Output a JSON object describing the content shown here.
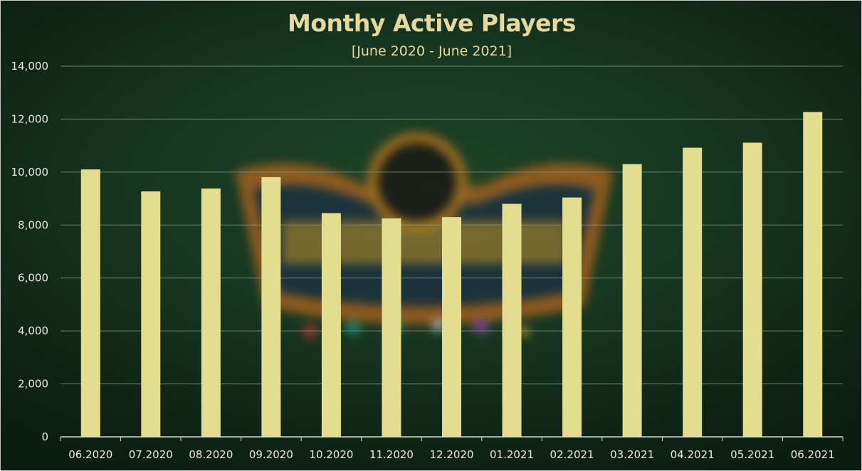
{
  "chart_data": {
    "type": "bar",
    "title": "Monthy Active Players",
    "subtitle": "[June 2020 - June 2021]",
    "xlabel": "",
    "ylabel": "",
    "categories": [
      "06.2020",
      "07.2020",
      "08.2020",
      "09.2020",
      "10.2020",
      "11.2020",
      "12.2020",
      "01.2021",
      "02.2021",
      "03.2021",
      "04.2021",
      "05.2021",
      "06.2021"
    ],
    "values": [
      10100,
      9270,
      9380,
      9810,
      8450,
      8250,
      8300,
      8800,
      9040,
      10300,
      10920,
      11110,
      12270
    ],
    "ylim": [
      0,
      14000
    ],
    "yticks": [
      "0",
      "2,000",
      "4,000",
      "6,000",
      "8,000",
      "10,000",
      "12,000",
      "14,000"
    ],
    "ytick_values": [
      0,
      2000,
      4000,
      6000,
      8000,
      10000,
      12000,
      14000
    ],
    "grid": true,
    "legend": "none",
    "colors": {
      "bar": "#e3de8f",
      "text": "#e8e8e8",
      "title": "#e6d9a0",
      "grid": "#8a9a8e"
    }
  }
}
